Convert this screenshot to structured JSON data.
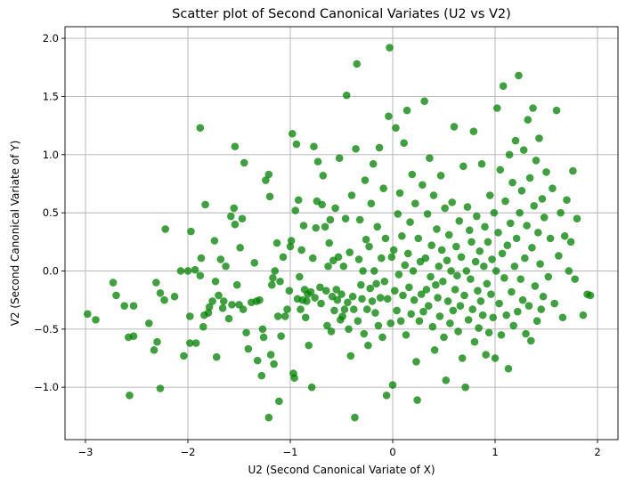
{
  "chart_data": {
    "type": "scatter",
    "title": "Scatter plot of Second Canonical Variates (U2 vs V2)",
    "xlabel": "U2 (Second Canonical Variate of X)",
    "ylabel": "V2 (Second Canonical Variate of Y)",
    "xlim": [
      -3.2,
      2.2
    ],
    "ylim": [
      -1.45,
      2.1
    ],
    "xticks": [
      -3,
      -2,
      -1,
      0,
      1,
      2
    ],
    "xtick_labels": [
      "−3",
      "−2",
      "−1",
      "0",
      "1",
      "2"
    ],
    "yticks": [
      -1.0,
      -0.5,
      0.0,
      0.5,
      1.0,
      1.5,
      2.0
    ],
    "ytick_labels": [
      "−1.0",
      "−0.5",
      "0.0",
      "0.5",
      "1.0",
      "1.5",
      "2.0"
    ],
    "grid": true,
    "legend": "none",
    "marker_color": "#008000",
    "marker_alpha": 0.75,
    "points": [
      [
        -2.98,
        -0.37
      ],
      [
        -2.9,
        -0.42
      ],
      [
        -2.73,
        -0.1
      ],
      [
        -2.7,
        -0.21
      ],
      [
        -2.62,
        -0.3
      ],
      [
        -2.58,
        -0.57
      ],
      [
        -2.53,
        -0.56
      ],
      [
        -2.57,
        -1.07
      ],
      [
        -2.53,
        -0.3
      ],
      [
        -2.38,
        -0.45
      ],
      [
        -2.33,
        -0.68
      ],
      [
        -2.31,
        -0.1
      ],
      [
        -2.3,
        -0.61
      ],
      [
        -2.27,
        -0.19
      ],
      [
        -2.27,
        -1.01
      ],
      [
        -2.23,
        -0.25
      ],
      [
        -2.22,
        0.36
      ],
      [
        -2.13,
        -0.22
      ],
      [
        -2.07,
        0.0
      ],
      [
        -2.04,
        -0.73
      ],
      [
        -2.0,
        0.0
      ],
      [
        -1.98,
        -0.62
      ],
      [
        -1.98,
        -0.39
      ],
      [
        -1.97,
        0.34
      ],
      [
        -1.93,
        0.01
      ],
      [
        -1.92,
        -0.62
      ],
      [
        -1.88,
        -0.04
      ],
      [
        -1.87,
        0.11
      ],
      [
        -1.88,
        1.23
      ],
      [
        -1.85,
        -0.48
      ],
      [
        -1.84,
        -0.38
      ],
      [
        -1.83,
        0.57
      ],
      [
        -1.8,
        -0.36
      ],
      [
        -1.79,
        -0.31
      ],
      [
        -1.76,
        -0.26
      ],
      [
        -1.74,
        0.26
      ],
      [
        -1.73,
        -0.09
      ],
      [
        -1.72,
        -0.74
      ],
      [
        -1.7,
        -0.21
      ],
      [
        -1.68,
        0.1
      ],
      [
        -1.66,
        -0.32
      ],
      [
        -1.65,
        -0.26
      ],
      [
        -1.63,
        0.04
      ],
      [
        -1.6,
        -0.41
      ],
      [
        -1.58,
        0.47
      ],
      [
        -1.57,
        -0.29
      ],
      [
        -1.55,
        0.54
      ],
      [
        -1.54,
        0.4
      ],
      [
        -1.54,
        1.07
      ],
      [
        -1.52,
        -0.12
      ],
      [
        -1.5,
        -0.29
      ],
      [
        -1.49,
        0.2
      ],
      [
        -1.47,
        0.45
      ],
      [
        -1.46,
        -0.33
      ],
      [
        -1.45,
        0.93
      ],
      [
        -1.43,
        -0.53
      ],
      [
        -1.41,
        -0.67
      ],
      [
        -1.38,
        -0.27
      ],
      [
        -1.35,
        0.07
      ],
      [
        -1.33,
        -0.26
      ],
      [
        -1.32,
        -0.77
      ],
      [
        -1.3,
        -0.25
      ],
      [
        -1.28,
        -0.9
      ],
      [
        -1.27,
        -0.5
      ],
      [
        -1.26,
        -0.57
      ],
      [
        -1.24,
        0.78
      ],
      [
        -1.21,
        0.83
      ],
      [
        -1.21,
        -1.26
      ],
      [
        -1.2,
        0.64
      ],
      [
        -1.19,
        -0.72
      ],
      [
        -1.18,
        -0.12
      ],
      [
        -1.17,
        -0.06
      ],
      [
        -1.16,
        -0.8
      ],
      [
        -1.15,
        0.0
      ],
      [
        -1.13,
        0.24
      ],
      [
        -1.12,
        -0.39
      ],
      [
        -1.11,
        -1.12
      ],
      [
        -1.1,
        -0.09
      ],
      [
        -1.09,
        -0.56
      ],
      [
        -1.07,
        0.12
      ],
      [
        -1.05,
        -0.39
      ],
      [
        -1.03,
        -0.33
      ],
      [
        -1.01,
        -0.17
      ],
      [
        -1.0,
        0.21
      ],
      [
        -0.99,
        0.26
      ],
      [
        -0.98,
        1.18
      ],
      [
        -0.97,
        -0.88
      ],
      [
        -0.96,
        -0.92
      ],
      [
        -0.95,
        0.52
      ],
      [
        -0.94,
        1.09
      ],
      [
        -0.93,
        -0.24
      ],
      [
        -0.92,
        0.61
      ],
      [
        -0.91,
        -0.05
      ],
      [
        -0.9,
        -0.33
      ],
      [
        -0.89,
        0.18
      ],
      [
        -0.88,
        -0.25
      ],
      [
        -0.87,
        0.39
      ],
      [
        -0.86,
        -0.16
      ],
      [
        -0.85,
        -0.4
      ],
      [
        -0.84,
        -0.26
      ],
      [
        -0.83,
        -0.2
      ],
      [
        -0.82,
        -0.64
      ],
      [
        -0.8,
        -0.18
      ],
      [
        -0.79,
        -1.0
      ],
      [
        -0.78,
        0.11
      ],
      [
        -0.77,
        1.07
      ],
      [
        -0.76,
        -0.23
      ],
      [
        -0.75,
        0.37
      ],
      [
        -0.74,
        0.6
      ],
      [
        -0.73,
        0.94
      ],
      [
        -0.71,
        -0.14
      ],
      [
        -0.7,
        -0.28
      ],
      [
        -0.69,
        0.57
      ],
      [
        -0.68,
        0.82
      ],
      [
        -0.66,
        0.38
      ],
      [
        -0.65,
        -0.17
      ],
      [
        -0.64,
        -0.47
      ],
      [
        -0.63,
        0.04
      ],
      [
        -0.62,
        0.24
      ],
      [
        -0.61,
        0.44
      ],
      [
        -0.6,
        -0.52
      ],
      [
        -0.59,
        -0.22
      ],
      [
        -0.58,
        0.09
      ],
      [
        -0.57,
        -0.34
      ],
      [
        -0.56,
        0.54
      ],
      [
        -0.55,
        -0.16
      ],
      [
        -0.54,
        -0.25
      ],
      [
        -0.53,
        0.12
      ],
      [
        -0.52,
        0.97
      ],
      [
        -0.51,
        -0.42
      ],
      [
        -0.5,
        -0.2
      ],
      [
        -0.49,
        -0.39
      ],
      [
        -0.48,
        0.04
      ],
      [
        -0.47,
        -0.33
      ],
      [
        -0.46,
        0.45
      ],
      [
        -0.45,
        1.51
      ],
      [
        -0.44,
        -0.27
      ],
      [
        -0.43,
        -0.5
      ],
      [
        -0.42,
        0.16
      ],
      [
        -0.41,
        -0.73
      ],
      [
        -0.4,
        0.65
      ],
      [
        -0.39,
        -0.22
      ],
      [
        -0.38,
        -0.33
      ],
      [
        -0.37,
        -1.26
      ],
      [
        -0.36,
        1.05
      ],
      [
        -0.35,
        1.78
      ],
      [
        -0.34,
        -0.43
      ],
      [
        -0.33,
        0.1
      ],
      [
        -0.32,
        0.44
      ],
      [
        -0.31,
        -0.12
      ],
      [
        -0.3,
        -0.24
      ],
      [
        -0.29,
        0.0
      ],
      [
        -0.28,
        -0.54
      ],
      [
        -0.27,
        0.78
      ],
      [
        -0.26,
        0.27
      ],
      [
        -0.25,
        -0.33
      ],
      [
        -0.24,
        -0.64
      ],
      [
        -0.23,
        0.21
      ],
      [
        -0.22,
        -0.15
      ],
      [
        -0.21,
        0.58
      ],
      [
        -0.2,
        -0.26
      ],
      [
        -0.19,
        0.92
      ],
      [
        -0.18,
        0.0
      ],
      [
        -0.17,
        -0.36
      ],
      [
        -0.16,
        -0.11
      ],
      [
        -0.15,
        0.38
      ],
      [
        -0.14,
        -0.47
      ],
      [
        -0.13,
        1.06
      ],
      [
        -0.12,
        -0.23
      ],
      [
        -0.11,
        0.11
      ],
      [
        -0.1,
        -0.57
      ],
      [
        -0.09,
        0.71
      ],
      [
        -0.08,
        -0.09
      ],
      [
        -0.07,
        0.28
      ],
      [
        -0.06,
        -1.07
      ],
      [
        -0.05,
        -0.24
      ],
      [
        -0.04,
        1.33
      ],
      [
        -0.03,
        1.92
      ],
      [
        -0.02,
        -0.45
      ],
      [
        -0.01,
        0.12
      ],
      [
        0.0,
        -0.98
      ],
      [
        0.01,
        0.18
      ],
      [
        0.02,
        -0.17
      ],
      [
        0.03,
        1.23
      ],
      [
        0.04,
        -0.34
      ],
      [
        0.05,
        0.49
      ],
      [
        0.06,
        -0.03
      ],
      [
        0.07,
        0.67
      ],
      [
        0.08,
        -0.43
      ],
      [
        0.09,
        0.3
      ],
      [
        0.1,
        -0.21
      ],
      [
        0.11,
        1.1
      ],
      [
        0.12,
        0.05
      ],
      [
        0.13,
        -0.55
      ],
      [
        0.14,
        1.38
      ],
      [
        0.15,
        0.15
      ],
      [
        0.16,
        -0.14
      ],
      [
        0.17,
        0.42
      ],
      [
        0.18,
        -0.37
      ],
      [
        0.19,
        0.83
      ],
      [
        0.2,
        0.0
      ],
      [
        0.21,
        -0.25
      ],
      [
        0.22,
        0.58
      ],
      [
        0.23,
        -0.78
      ],
      [
        0.24,
        -1.11
      ],
      [
        0.25,
        0.28
      ],
      [
        0.26,
        -0.43
      ],
      [
        0.27,
        0.08
      ],
      [
        0.28,
        -0.2
      ],
      [
        0.29,
        0.74
      ],
      [
        0.3,
        -0.35
      ],
      [
        0.31,
        1.46
      ],
      [
        0.32,
        0.11
      ],
      [
        0.33,
        -0.16
      ],
      [
        0.34,
        0.49
      ],
      [
        0.35,
        -0.3
      ],
      [
        0.36,
        0.97
      ],
      [
        0.37,
        -0.05
      ],
      [
        0.38,
        0.22
      ],
      [
        0.39,
        -0.48
      ],
      [
        0.4,
        0.65
      ],
      [
        0.41,
        -0.68
      ],
      [
        0.42,
        -0.12
      ],
      [
        0.43,
        0.36
      ],
      [
        0.44,
        -0.23
      ],
      [
        0.45,
        0.04
      ],
      [
        0.46,
        -0.39
      ],
      [
        0.47,
        0.82
      ],
      [
        0.48,
        0.18
      ],
      [
        0.49,
        -0.09
      ],
      [
        0.5,
        -0.57
      ],
      [
        0.51,
        0.54
      ],
      [
        0.52,
        -0.94
      ],
      [
        0.53,
        0.09
      ],
      [
        0.54,
        -0.26
      ],
      [
        0.55,
        0.31
      ],
      [
        0.56,
        -0.45
      ],
      [
        0.57,
        0.0
      ],
      [
        0.58,
        0.59
      ],
      [
        0.59,
        -0.34
      ],
      [
        0.6,
        1.24
      ],
      [
        0.61,
        -0.16
      ],
      [
        0.62,
        0.21
      ],
      [
        0.63,
        -0.04
      ],
      [
        0.64,
        -0.52
      ],
      [
        0.65,
        0.43
      ],
      [
        0.66,
        -0.3
      ],
      [
        0.67,
        0.12
      ],
      [
        0.68,
        -0.75
      ],
      [
        0.69,
        0.9
      ],
      [
        0.7,
        -0.21
      ],
      [
        0.71,
        -1.0
      ],
      [
        0.72,
        0.0
      ],
      [
        0.73,
        0.55
      ],
      [
        0.74,
        -0.42
      ],
      [
        0.75,
        0.35
      ],
      [
        0.76,
        -0.07
      ],
      [
        0.77,
        0.25
      ],
      [
        0.78,
        -0.33
      ],
      [
        0.79,
        1.2
      ],
      [
        0.8,
        -0.61
      ],
      [
        0.81,
        0.08
      ],
      [
        0.82,
        0.47
      ],
      [
        0.83,
        -0.17
      ],
      [
        0.84,
        -0.49
      ],
      [
        0.85,
        0.17
      ],
      [
        0.86,
        -0.26
      ],
      [
        0.87,
        0.92
      ],
      [
        0.88,
        -0.38
      ],
      [
        0.89,
        0.04
      ],
      [
        0.9,
        0.38
      ],
      [
        0.91,
        -0.72
      ],
      [
        0.92,
        -0.11
      ],
      [
        0.93,
        0.25
      ],
      [
        0.94,
        -0.53
      ],
      [
        0.95,
        0.65
      ],
      [
        0.96,
        -0.2
      ],
      [
        0.97,
        0.1
      ],
      [
        0.98,
        -0.4
      ],
      [
        0.99,
        0.5
      ],
      [
        1.0,
        -0.75
      ],
      [
        1.01,
        0.0
      ],
      [
        1.02,
        1.4
      ],
      [
        1.03,
        0.33
      ],
      [
        1.04,
        -0.28
      ],
      [
        1.05,
        0.87
      ],
      [
        1.06,
        -0.55
      ],
      [
        1.07,
        0.15
      ],
      [
        1.08,
        1.59
      ],
      [
        1.09,
        -0.06
      ],
      [
        1.1,
        0.6
      ],
      [
        1.11,
        -0.38
      ],
      [
        1.12,
        0.22
      ],
      [
        1.13,
        -0.84
      ],
      [
        1.14,
        1.0
      ],
      [
        1.15,
        0.41
      ],
      [
        1.16,
        -0.18
      ],
      [
        1.17,
        0.76
      ],
      [
        1.18,
        -0.47
      ],
      [
        1.19,
        0.04
      ],
      [
        1.2,
        1.12
      ],
      [
        1.21,
        0.28
      ],
      [
        1.22,
        -0.35
      ],
      [
        1.23,
        1.68
      ],
      [
        1.24,
        0.5
      ],
      [
        1.25,
        -0.07
      ],
      [
        1.26,
        0.69
      ],
      [
        1.27,
        -0.25
      ],
      [
        1.28,
        1.04
      ],
      [
        1.29,
        0.11
      ],
      [
        1.3,
        -0.54
      ],
      [
        1.31,
        0.39
      ],
      [
        1.32,
        1.3
      ],
      [
        1.33,
        -0.3
      ],
      [
        1.34,
        0.8
      ],
      [
        1.35,
        -0.6
      ],
      [
        1.36,
        0.2
      ],
      [
        1.37,
        1.4
      ],
      [
        1.38,
        0.56
      ],
      [
        1.39,
        -0.13
      ],
      [
        1.4,
        0.95
      ],
      [
        1.41,
        -0.43
      ],
      [
        1.42,
        0.33
      ],
      [
        1.43,
        1.14
      ],
      [
        1.44,
        0.06
      ],
      [
        1.45,
        -0.33
      ],
      [
        1.46,
        0.62
      ],
      [
        1.47,
        -0.22
      ],
      [
        1.48,
        0.46
      ],
      [
        1.5,
        0.85
      ],
      [
        1.52,
        -0.05
      ],
      [
        1.54,
        0.28
      ],
      [
        1.56,
        0.71
      ],
      [
        1.58,
        -0.28
      ],
      [
        1.6,
        1.38
      ],
      [
        1.62,
        0.13
      ],
      [
        1.64,
        0.5
      ],
      [
        1.66,
        -0.4
      ],
      [
        1.68,
        0.3
      ],
      [
        1.7,
        0.61
      ],
      [
        1.72,
        0.0
      ],
      [
        1.74,
        0.25
      ],
      [
        1.76,
        0.86
      ],
      [
        1.78,
        -0.07
      ],
      [
        1.8,
        0.45
      ],
      [
        1.86,
        -0.38
      ],
      [
        1.9,
        -0.2
      ],
      [
        1.93,
        -0.21
      ]
    ]
  }
}
